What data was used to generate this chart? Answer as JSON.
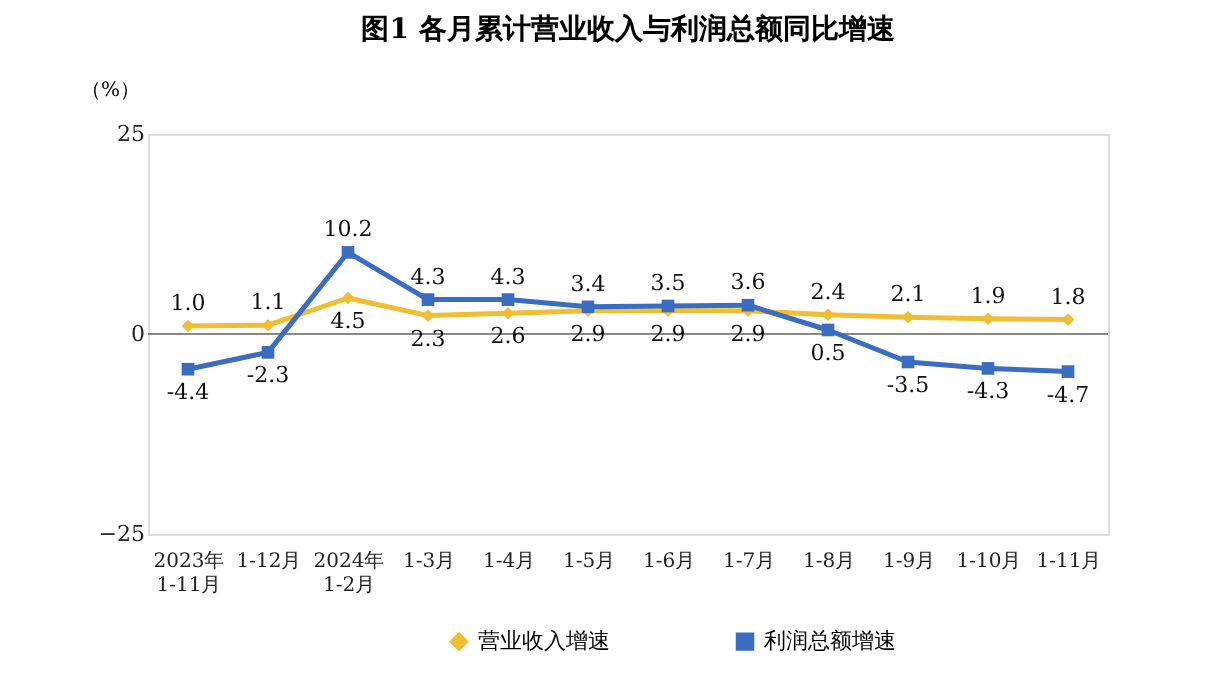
{
  "chart_data": {
    "type": "line",
    "title": "图1  各月累计营业收入与利润总额同比增速",
    "ylabel": "（%）",
    "categories": [
      "2023年\n1-11月",
      "1-12月",
      "2024年\n1-2月",
      "1-3月",
      "1-4月",
      "1-5月",
      "1-6月",
      "1-7月",
      "1-8月",
      "1-9月",
      "1-10月",
      "1-11月"
    ],
    "series": [
      {
        "name": "营业收入增速",
        "color": "#f0be32",
        "marker": "diamond",
        "values": [
          1.0,
          1.1,
          4.5,
          2.3,
          2.6,
          2.9,
          2.9,
          2.9,
          2.4,
          2.1,
          1.9,
          1.8
        ],
        "value_labels": [
          "1.0",
          "1.1",
          "4.5",
          "2.3",
          "2.6",
          "2.9",
          "2.9",
          "2.9",
          "2.4",
          "2.1",
          "1.9",
          "1.8"
        ]
      },
      {
        "name": "利润总额增速",
        "color": "#3a6cc0",
        "marker": "square",
        "values": [
          -4.4,
          -2.3,
          10.2,
          4.3,
          4.3,
          3.4,
          3.5,
          3.6,
          0.5,
          -3.5,
          -4.3,
          -4.7
        ]
      }
    ],
    "ylim": [
      -25,
      25
    ],
    "yticks": [
      -25,
      0,
      25
    ],
    "ref_lines": [
      {
        "axis": "y",
        "value": 0,
        "color": "#888888"
      }
    ],
    "data_labels": true,
    "grid": false,
    "legend": "bottom",
    "line_style": "solid"
  }
}
